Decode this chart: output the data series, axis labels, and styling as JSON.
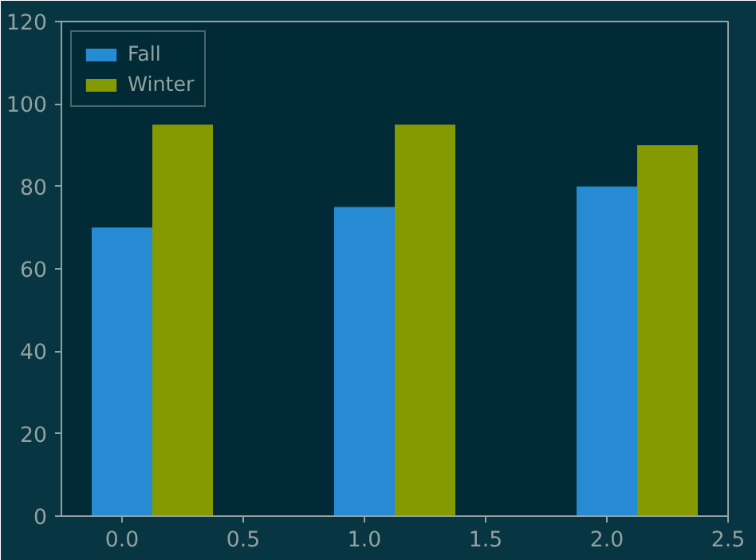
{
  "chart_data": {
    "type": "bar",
    "xlim": [
      -0.25,
      2.5
    ],
    "xticks": [
      {
        "value": 0,
        "label": "0.0"
      },
      {
        "value": 0.5,
        "label": "0.5"
      },
      {
        "value": 1,
        "label": "1.0"
      },
      {
        "value": 1.5,
        "label": "1.5"
      },
      {
        "value": 2,
        "label": "2.0"
      },
      {
        "value": 2.5,
        "label": "2.5"
      }
    ],
    "ylim": [
      0,
      120
    ],
    "yticks": [
      0,
      20,
      40,
      60,
      80,
      100,
      120
    ],
    "grid": false,
    "legend": "top left",
    "series": [
      {
        "name": "Fall",
        "color": "#268bd2",
        "x": [
          0,
          1,
          2
        ],
        "values": [
          70,
          75,
          80
        ]
      },
      {
        "name": "Winter",
        "color": "#859900",
        "x": [
          0.25,
          1.25,
          2.25
        ],
        "values": [
          95,
          95,
          90
        ]
      }
    ]
  }
}
